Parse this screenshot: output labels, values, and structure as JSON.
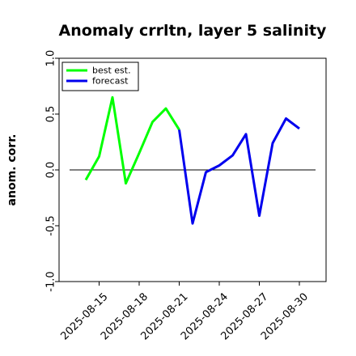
{
  "chart_data": {
    "type": "line",
    "title": "Anomaly crrltn, layer 5 salinity",
    "xlabel": "",
    "ylabel": "anom. corr.",
    "ylim": [
      -1.0,
      1.0
    ],
    "yticks": [
      -1.0,
      -0.5,
      0.0,
      0.5,
      1.0
    ],
    "ytick_labels": [
      "-1.0",
      "-0.5",
      "0.0",
      "0.5",
      "1.0"
    ],
    "xtick_labels": [
      "2025-08-15",
      "2025-08-18",
      "2025-08-21",
      "2025-08-24",
      "2025-08-27",
      "2025-08-30"
    ],
    "highlight_tick": "2025-08-21",
    "highlight_color": "#228b22",
    "legend": {
      "position": "top-left"
    },
    "reference_line": 0.0,
    "series": [
      {
        "name": "best est.",
        "color": "#00ff00",
        "x": [
          "2025-08-14",
          "2025-08-15",
          "2025-08-16",
          "2025-08-17",
          "2025-08-18",
          "2025-08-19",
          "2025-08-20",
          "2025-08-21"
        ],
        "values": [
          -0.09,
          0.12,
          0.65,
          -0.12,
          0.15,
          0.43,
          0.55,
          0.36
        ]
      },
      {
        "name": "forecast",
        "color": "#0000ee",
        "x": [
          "2025-08-21",
          "2025-08-22",
          "2025-08-23",
          "2025-08-24",
          "2025-08-25",
          "2025-08-26",
          "2025-08-27",
          "2025-08-28",
          "2025-08-29",
          "2025-08-30"
        ],
        "values": [
          0.36,
          -0.48,
          -0.02,
          0.04,
          0.13,
          0.32,
          -0.41,
          0.24,
          0.46,
          0.37
        ]
      }
    ]
  }
}
